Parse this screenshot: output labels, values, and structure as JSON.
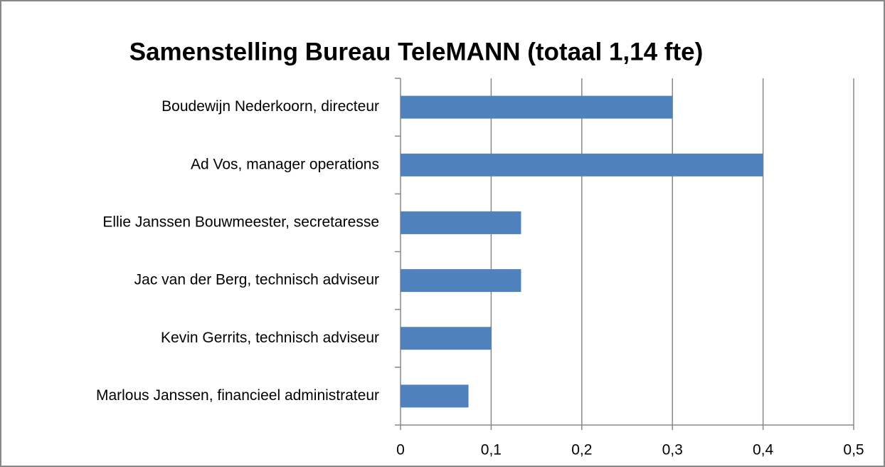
{
  "chart_data": {
    "type": "bar",
    "orientation": "horizontal",
    "title": "Samenstelling Bureau TeleMANN (totaal 1,14 fte)",
    "categories": [
      "Boudewijn Nederkoorn, directeur",
      "Ad Vos, manager operations",
      "Ellie Janssen Bouwmeester, secretaresse",
      "Jac van der Berg, technisch adviseur",
      "Kevin Gerrits, technisch adviseur",
      "Marlous Janssen, financieel administrateur"
    ],
    "values": [
      0.3,
      0.4,
      0.133,
      0.133,
      0.1,
      0.075
    ],
    "color": "#4f81bd",
    "xlim": [
      0,
      0.5
    ],
    "xticks": [
      0,
      {
        "value": 0.1,
        "label": "0,1"
      },
      {
        "value": 0.2,
        "label": "0,2"
      },
      {
        "value": 0.3,
        "label": "0,3"
      },
      {
        "value": 0.4,
        "label": "0,4"
      },
      {
        "value": 0.5,
        "label": "0,5"
      }
    ],
    "grid": true
  }
}
